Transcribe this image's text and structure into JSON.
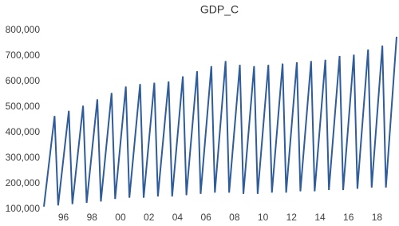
{
  "chart_data": {
    "type": "line",
    "title": "GDP_C",
    "categories": [
      null,
      null,
      null,
      null,
      "96",
      null,
      null,
      null,
      null,
      null,
      null,
      null,
      "98",
      null,
      null,
      null,
      null,
      null,
      null,
      null,
      "00",
      null,
      null,
      null,
      null,
      null,
      null,
      null,
      "02",
      null,
      null,
      null,
      null,
      null,
      null,
      null,
      "04",
      null,
      null,
      null,
      null,
      null,
      null,
      null,
      "06",
      null,
      null,
      null,
      null,
      null,
      null,
      null,
      "08",
      null,
      null,
      null,
      null,
      null,
      null,
      null,
      "10",
      null,
      null,
      null,
      null,
      null,
      null,
      null,
      "12",
      null,
      null,
      null,
      null,
      null,
      null,
      null,
      "14",
      null,
      null,
      null,
      null,
      null,
      null,
      null,
      "16",
      null,
      null,
      null,
      null,
      null,
      null,
      null,
      "18",
      null,
      null,
      null,
      null,
      null,
      null,
      null
    ],
    "values": [
      110000,
      228000,
      347000,
      465000,
      115000,
      238000,
      362000,
      485000,
      120000,
      248000,
      377000,
      505000,
      125000,
      260000,
      395000,
      530000,
      130000,
      272000,
      413000,
      555000,
      140000,
      287000,
      433000,
      580000,
      145000,
      293000,
      442000,
      590000,
      145000,
      295000,
      445000,
      595000,
      150000,
      300000,
      450000,
      600000,
      150000,
      307000,
      463000,
      620000,
      155000,
      317000,
      478000,
      640000,
      160000,
      327000,
      493000,
      660000,
      165000,
      337000,
      508000,
      680000,
      165000,
      332000,
      498000,
      665000,
      160000,
      327000,
      493000,
      660000,
      160000,
      328000,
      497000,
      665000,
      165000,
      333000,
      502000,
      670000,
      165000,
      335000,
      505000,
      675000,
      170000,
      340000,
      510000,
      680000,
      170000,
      342000,
      513000,
      685000,
      175000,
      350000,
      525000,
      700000,
      175000,
      352000,
      528000,
      705000,
      180000,
      362000,
      543000,
      725000,
      185000,
      370000,
      555000,
      740000,
      185000,
      382000,
      578000,
      775000
    ],
    "color": "#2f5c9a",
    "ylim": [
      100000,
      800000
    ],
    "yticks": [
      {
        "value": 100000,
        "label": "100,000"
      },
      {
        "value": 200000,
        "label": "200,000"
      },
      {
        "value": 300000,
        "label": "300,000"
      },
      {
        "value": 400000,
        "label": "400,000"
      },
      {
        "value": 500000,
        "label": "500,000"
      },
      {
        "value": 600000,
        "label": "600,000"
      },
      {
        "value": 700000,
        "label": "700,000"
      },
      {
        "value": 800000,
        "label": "800,000"
      }
    ],
    "grid": false
  }
}
